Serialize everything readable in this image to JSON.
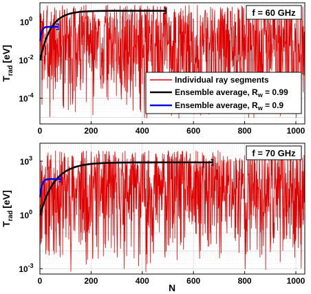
{
  "chart_data": [
    {
      "type": "line",
      "annotation": "f = 60 GHz",
      "ylabel": "T",
      "ylabel_sub": "rad",
      "ylabel_unit": "[eV]",
      "yscale": "log",
      "xlim": [
        0,
        1035
      ],
      "ylim_log10": [
        -5.35,
        1.0
      ],
      "x_ticks": [
        0,
        200,
        400,
        600,
        800,
        1000
      ],
      "y_ticks": [
        {
          "value": 1,
          "label": "10",
          "exp": "0"
        },
        {
          "value": 0.01,
          "label": "10",
          "exp": "-2"
        },
        {
          "value": 0.0001,
          "label": "10",
          "exp": "-4"
        }
      ],
      "grid": true,
      "legend_position": "right",
      "legend": [
        {
          "label": "Individual ray segments",
          "color": "#e00000"
        },
        {
          "label": "Ensemble average, R",
          "sub": "w",
          "tail": " = 0.99",
          "color": "#000000"
        },
        {
          "label": "Ensemble average, R",
          "sub": "w",
          "tail": " = 0.9",
          "color": "#0000e0"
        }
      ],
      "series": [
        {
          "kind": "segments",
          "color": "#e00000",
          "n": 1035,
          "min_log10": -5.3,
          "max_log10": 0.9,
          "seed": 3
        },
        {
          "kind": "average",
          "color": "#000000",
          "x_end": 493,
          "y_start": 0.01,
          "y_end": 3.8
        },
        {
          "kind": "average",
          "color": "#0000e0",
          "x_end": 72,
          "y_start": 0.1,
          "y_end": 0.55
        }
      ]
    },
    {
      "type": "line",
      "annotation": "f = 70 GHz",
      "xlabel": "N",
      "ylabel": "T",
      "ylabel_sub": "rad",
      "ylabel_unit": "[eV]",
      "yscale": "log",
      "xlim": [
        0,
        1035
      ],
      "ylim_log10": [
        -3.3,
        4.0
      ],
      "x_ticks": [
        0,
        200,
        400,
        600,
        800,
        1000
      ],
      "y_ticks": [
        {
          "value": 1000,
          "label": "10",
          "exp": "3"
        },
        {
          "value": 1,
          "label": "10",
          "exp": "0"
        },
        {
          "value": 0.001,
          "label": "10",
          "exp": "-3"
        }
      ],
      "grid": true,
      "series": [
        {
          "kind": "segments",
          "color": "#e00000",
          "n": 1035,
          "min_log10": -3.3,
          "max_log10": 3.6,
          "seed": 11
        },
        {
          "kind": "average",
          "color": "#000000",
          "x_end": 676,
          "y_start": 1,
          "y_end": 850
        },
        {
          "kind": "average",
          "color": "#0000e0",
          "x_end": 82,
          "y_start": 10,
          "y_end": 100
        }
      ]
    }
  ]
}
